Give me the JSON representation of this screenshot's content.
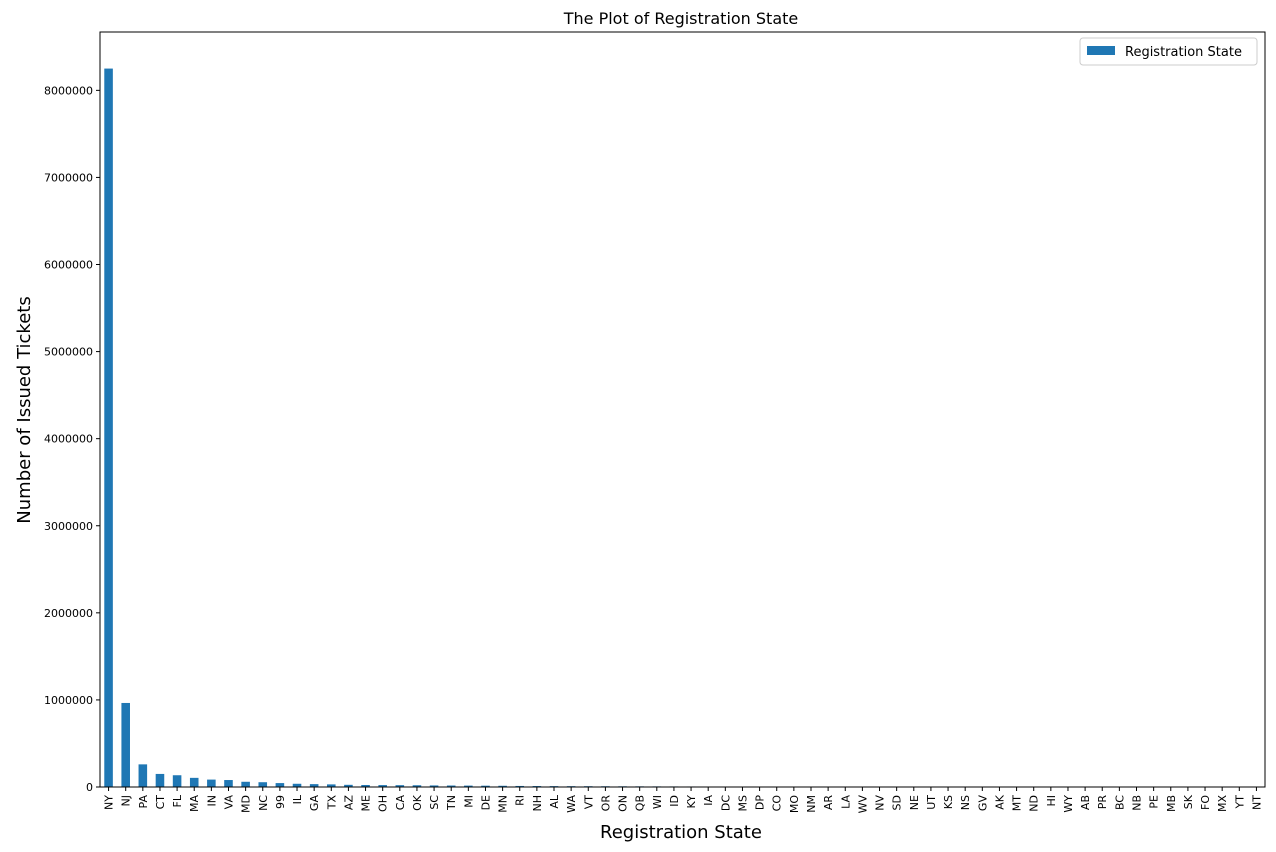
{
  "chart_data": {
    "type": "bar",
    "title": "The Plot of Registration State",
    "xlabel": "Registration State",
    "ylabel": "Number of Issued Tickets",
    "ylim": [
      0,
      8670000
    ],
    "yticks": [
      0,
      1000000,
      2000000,
      3000000,
      4000000,
      5000000,
      6000000,
      7000000,
      8000000
    ],
    "ytick_labels": [
      "0",
      "1000000",
      "2000000",
      "3000000",
      "4000000",
      "5000000",
      "6000000",
      "7000000",
      "8000000"
    ],
    "grid": false,
    "legend_position": "top-right",
    "bar_color": "#1f77b4",
    "categories": [
      "NY",
      "NJ",
      "PA",
      "CT",
      "FL",
      "MA",
      "IN",
      "VA",
      "MD",
      "NC",
      "99",
      "IL",
      "GA",
      "TX",
      "AZ",
      "ME",
      "OH",
      "CA",
      "OK",
      "SC",
      "TN",
      "MI",
      "DE",
      "MN",
      "RI",
      "NH",
      "AL",
      "WA",
      "VT",
      "OR",
      "ON",
      "QB",
      "WI",
      "ID",
      "KY",
      "IA",
      "DC",
      "MS",
      "DP",
      "CO",
      "MO",
      "NM",
      "AR",
      "LA",
      "WV",
      "NV",
      "SD",
      "NE",
      "UT",
      "KS",
      "NS",
      "GV",
      "AK",
      "MT",
      "ND",
      "HI",
      "WY",
      "AB",
      "PR",
      "BC",
      "NB",
      "PE",
      "MB",
      "SK",
      "FO",
      "MX",
      "YT",
      "NT"
    ],
    "series": [
      {
        "name": "Registration State",
        "values": [
          8250000,
          965000,
          260000,
          150000,
          135000,
          105000,
          85000,
          80000,
          60000,
          55000,
          45000,
          37000,
          33000,
          30000,
          25000,
          23000,
          22000,
          21000,
          20000,
          18000,
          17000,
          16000,
          15000,
          14000,
          12000,
          11000,
          10000,
          9500,
          9000,
          8500,
          8000,
          7500,
          7000,
          6500,
          6000,
          5500,
          5000,
          4500,
          4000,
          3000,
          2500,
          2200,
          2000,
          1800,
          1600,
          1400,
          1200,
          1000,
          900,
          800,
          700,
          600,
          500,
          450,
          400,
          350,
          300,
          250,
          200,
          150,
          120,
          100,
          80,
          60,
          50,
          40,
          30,
          20
        ]
      }
    ]
  }
}
